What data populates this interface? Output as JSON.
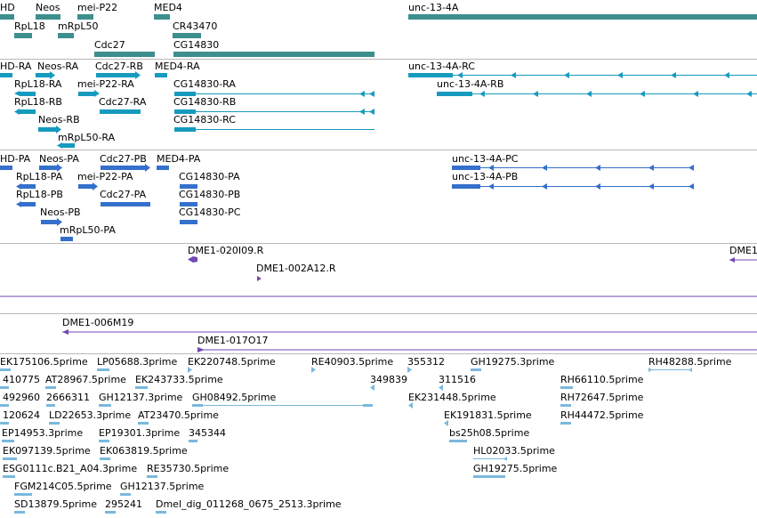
{
  "colors": {
    "gene": "#3d8f8e",
    "transcript_r": "#169bbf",
    "transcript_p": "#3470cc",
    "clone": "#6f48b3",
    "est": "#7ab8dd",
    "separator": "#b8b8b8"
  },
  "tracks": {
    "genes": {
      "labels": [
        "HD",
        "Neos",
        "mei-P22",
        "MED4",
        "unc-13-4A",
        "RpL18",
        "mRpL50",
        "CR43470",
        "Cdc27",
        "CG14830"
      ]
    },
    "transcripts_r": {
      "labels": [
        "HD-RA",
        "Neos-RA",
        "Cdc27-RB",
        "MED4-RA",
        "unc-13-4A-RC",
        "RpL18-RA",
        "mei-P22-RA",
        "CG14830-RA",
        "unc-13-4A-RB",
        "RpL18-RB",
        "Cdc27-RA",
        "CG14830-RB",
        "Neos-RB",
        "CG14830-RC",
        "mRpL50-RA"
      ]
    },
    "transcripts_p": {
      "labels": [
        "HD-PA",
        "Neos-PA",
        "Cdc27-PB",
        "MED4-PA",
        "unc-13-4A-PC",
        "RpL18-PA",
        "mei-P22-PA",
        "CG14830-PA",
        "unc-13-4A-PB",
        "RpL18-PB",
        "Cdc27-PA",
        "CG14830-PB",
        "Neos-PB",
        "CG14830-PC",
        "mRpL50-PA"
      ]
    },
    "clones_1": {
      "labels": [
        "DME1-020I09.R",
        "DME1-002A12.R",
        "DME1"
      ]
    },
    "clones_2": {
      "labels": [
        "DME1-006M19",
        "DME1-017O17"
      ]
    },
    "ests": {
      "labels": [
        "EK175106.5prime",
        "LP05688.3prime",
        "EK220748.5prime",
        "RE40903.5prime",
        "355312",
        "GH19275.3prime",
        "RH48288.5prime",
        "410775",
        "AT28967.5prime",
        "EK243733.5prime",
        "349839",
        "311516",
        "RH66110.5prime",
        "492960",
        "2666311",
        "GH12137.3prime",
        "GH08492.5prime",
        "EK231448.5prime",
        "RH72647.5prime",
        "120624",
        "LD22653.3prime",
        "AT23470.5prime",
        "EK191831.5prime",
        "RH44472.5prime",
        "EP14953.3prime",
        "EP19301.3prime",
        "345344",
        "bs25h08.5prime",
        "EK097139.5prime",
        "EK063819.5prime",
        "HL02033.5prime",
        "ESG0111c.B21_A04.3prime",
        "RE35730.5prime",
        "GH19275.5prime",
        "FGM214C05.5prime",
        "GH12137.5prime",
        "SD13879.5prime",
        "295241",
        "Dmel_dig_011268_0675_2513.3prime"
      ]
    }
  }
}
